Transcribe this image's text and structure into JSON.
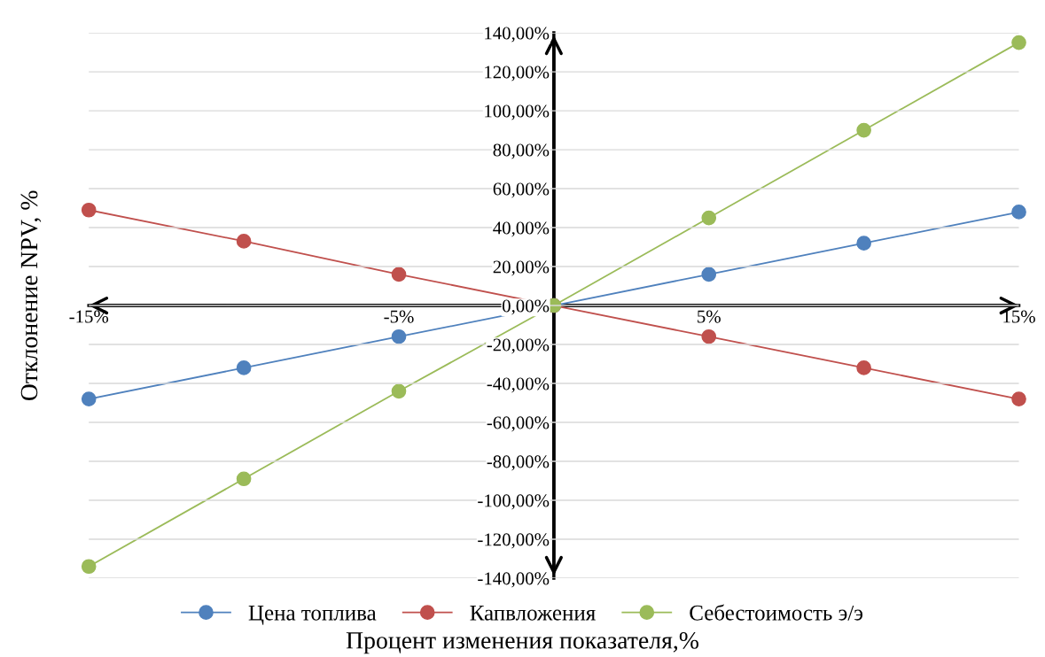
{
  "chart_data": {
    "type": "line",
    "xlabel": "Процент изменения показателя,%",
    "ylabel": "Отклонение NPV, %",
    "x": [
      -15,
      -10,
      -5,
      0,
      5,
      10,
      15
    ],
    "series": [
      {
        "name": "Цена топлива",
        "color": "#4f81bd",
        "values": [
          -48,
          -32,
          -16,
          0,
          16,
          32,
          48
        ]
      },
      {
        "name": "Капвложения",
        "color": "#c0504d",
        "values": [
          49,
          33,
          16,
          0,
          -16,
          -32,
          -48
        ]
      },
      {
        "name": "Себестоимость э/э",
        "color": "#9bbb59",
        "values": [
          -134,
          -89,
          -44,
          0,
          45,
          90,
          135
        ]
      }
    ],
    "xlim": [
      -15,
      15
    ],
    "xticks": [
      {
        "value": -15,
        "label": "-15%"
      },
      {
        "value": -5,
        "label": "-5%"
      },
      {
        "value": 5,
        "label": "5%"
      },
      {
        "value": 15,
        "label": "15%"
      }
    ],
    "ylim": [
      -140,
      140
    ],
    "yticks": [
      {
        "value": -140,
        "label": "-140,00%"
      },
      {
        "value": -120,
        "label": "-120,00%"
      },
      {
        "value": -100,
        "label": "-100,00%"
      },
      {
        "value": -80,
        "label": "-80,00%"
      },
      {
        "value": -60,
        "label": "-60,00%"
      },
      {
        "value": -40,
        "label": "-40,00%"
      },
      {
        "value": -20,
        "label": "-20,00%"
      },
      {
        "value": 0,
        "label": "0,00%"
      },
      {
        "value": 20,
        "label": "20,00%"
      },
      {
        "value": 40,
        "label": "40,00%"
      },
      {
        "value": 60,
        "label": "60,00%"
      },
      {
        "value": 80,
        "label": "80,00%"
      },
      {
        "value": 100,
        "label": "100,00%"
      },
      {
        "value": 120,
        "label": "120,00%"
      },
      {
        "value": 140,
        "label": "140,00%"
      }
    ],
    "grid": "y",
    "legend": "bottom",
    "marker": "circle",
    "line_style": "solid"
  }
}
